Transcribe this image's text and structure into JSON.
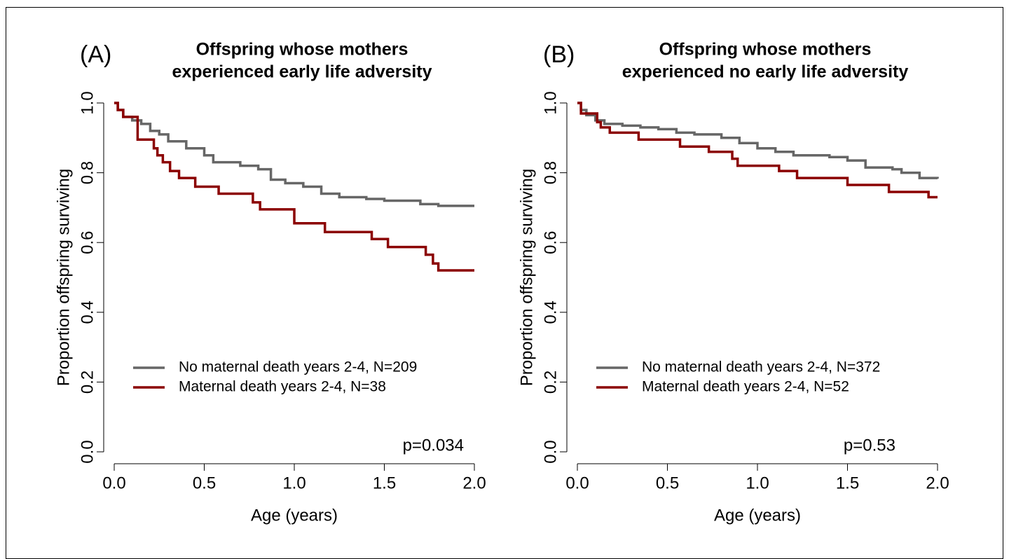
{
  "chart_data": [
    {
      "type": "line",
      "step": "post",
      "panel_label": "(A)",
      "title": [
        "Offspring whose mothers",
        "experienced early life adversity"
      ],
      "xlabel": "Age (years)",
      "ylabel": "Proportion offspring surviving",
      "annotation": "p=0.034",
      "xlim": [
        0,
        2
      ],
      "ylim": [
        0,
        1
      ],
      "xticks": [
        {
          "value": 0,
          "label": "0.0"
        },
        0.5,
        {
          "value": 1,
          "label": "1.0"
        },
        1.5,
        {
          "value": 2,
          "label": "2.0"
        }
      ],
      "yticks": [
        {
          "value": 0,
          "label": "0.0"
        },
        0.2,
        0.4,
        0.6,
        0.8,
        {
          "value": 1,
          "label": "1.0"
        }
      ],
      "series": [
        {
          "name": "No maternal death years 2-4, N=209",
          "color": "#666666",
          "x": [
            0,
            0.02,
            0.05,
            0.1,
            0.15,
            0.2,
            0.25,
            0.3,
            0.4,
            0.5,
            0.55,
            0.7,
            0.8,
            0.87,
            0.95,
            1.05,
            1.15,
            1.25,
            1.4,
            1.5,
            1.7,
            1.8,
            2.0
          ],
          "values": [
            1.0,
            0.98,
            0.96,
            0.95,
            0.94,
            0.92,
            0.91,
            0.89,
            0.87,
            0.85,
            0.83,
            0.82,
            0.81,
            0.78,
            0.77,
            0.76,
            0.74,
            0.73,
            0.725,
            0.72,
            0.71,
            0.705,
            0.705
          ]
        },
        {
          "name": "Maternal death years 2-4, N=38",
          "color": "#8b0000",
          "x": [
            0,
            0.02,
            0.05,
            0.13,
            0.22,
            0.24,
            0.27,
            0.31,
            0.36,
            0.45,
            0.58,
            0.77,
            0.81,
            1.0,
            1.17,
            1.43,
            1.52,
            1.73,
            1.77,
            1.8,
            2.0
          ],
          "values": [
            1.0,
            0.98,
            0.96,
            0.895,
            0.87,
            0.85,
            0.83,
            0.805,
            0.785,
            0.76,
            0.74,
            0.715,
            0.695,
            0.655,
            0.63,
            0.61,
            0.587,
            0.565,
            0.54,
            0.52,
            0.52
          ]
        }
      ]
    },
    {
      "type": "line",
      "step": "post",
      "panel_label": "(B)",
      "title": [
        "Offspring whose mothers",
        "experienced no early life adversity"
      ],
      "xlabel": "Age (years)",
      "ylabel": "Proportion offspring surviving",
      "annotation": "p=0.53",
      "xlim": [
        0,
        2
      ],
      "ylim": [
        0,
        1
      ],
      "xticks": [
        {
          "value": 0,
          "label": "0.0"
        },
        0.5,
        {
          "value": 1,
          "label": "1.0"
        },
        1.5,
        {
          "value": 2,
          "label": "2.0"
        }
      ],
      "yticks": [
        {
          "value": 0,
          "label": "0.0"
        },
        0.2,
        0.4,
        0.6,
        0.8,
        {
          "value": 1,
          "label": "1.0"
        }
      ],
      "series": [
        {
          "name": "No maternal death years 2-4, N=372",
          "color": "#666666",
          "x": [
            0,
            0.02,
            0.05,
            0.1,
            0.15,
            0.25,
            0.35,
            0.45,
            0.55,
            0.65,
            0.8,
            0.9,
            1.0,
            1.1,
            1.2,
            1.4,
            1.5,
            1.6,
            1.75,
            1.8,
            1.9,
            2.0
          ],
          "values": [
            1.0,
            0.98,
            0.965,
            0.95,
            0.94,
            0.935,
            0.93,
            0.925,
            0.915,
            0.91,
            0.9,
            0.885,
            0.87,
            0.86,
            0.85,
            0.845,
            0.835,
            0.815,
            0.81,
            0.8,
            0.785,
            0.783
          ]
        },
        {
          "name": "Maternal death years 2-4, N=52",
          "color": "#8b0000",
          "x": [
            0,
            0.02,
            0.11,
            0.13,
            0.18,
            0.34,
            0.57,
            0.73,
            0.86,
            0.89,
            1.12,
            1.22,
            1.5,
            1.73,
            1.95,
            2.0
          ],
          "values": [
            1.0,
            0.97,
            0.945,
            0.93,
            0.915,
            0.895,
            0.875,
            0.86,
            0.84,
            0.82,
            0.805,
            0.785,
            0.765,
            0.745,
            0.73,
            0.73
          ]
        }
      ]
    }
  ]
}
